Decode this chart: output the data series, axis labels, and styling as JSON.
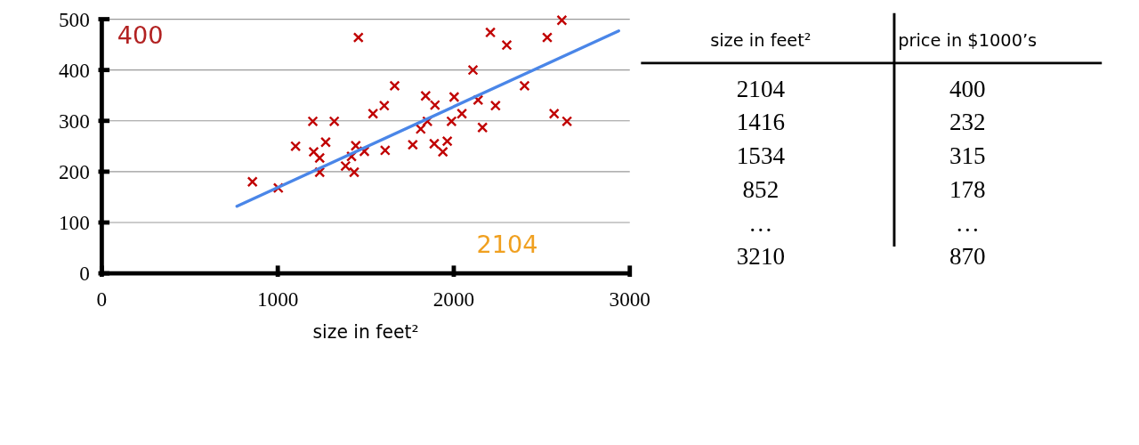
{
  "chart_data": [
    {
      "type": "scatter",
      "xlabel": "size in feet²",
      "xlim": [
        0,
        3000
      ],
      "xticks": [
        0,
        1000,
        2000,
        3000
      ],
      "ylim": [
        0,
        500
      ],
      "yticks": [
        0,
        100,
        200,
        300,
        400,
        500
      ],
      "grid": "y",
      "series": [
        {
          "type": "scatter",
          "marker": "cross",
          "color": "#c00000",
          "x": [
            856,
            1003,
            1101,
            1199,
            1204,
            1238,
            1238,
            1272,
            1321,
            1385,
            1419,
            1434,
            1443,
            1492,
            1458,
            2208,
            2301,
            2531,
            2614,
            2109,
            1664,
            2402,
            1840,
            2002,
            1893,
            2138,
            2237,
            1541,
            1605,
            2046,
            1987,
            1850,
            1812,
            2163,
            2570,
            2643,
            1767,
            1610,
            1889,
            1963,
            1938
          ],
          "values": [
            180,
            168,
            250,
            299,
            239,
            227,
            199,
            258,
            299,
            211,
            230,
            199,
            251,
            240,
            464,
            474,
            449,
            464,
            498,
            400,
            369,
            369,
            349,
            347,
            331,
            341,
            330,
            314,
            330,
            314,
            299,
            299,
            284,
            287,
            314,
            299,
            253,
            242,
            255,
            260,
            239
          ]
        },
        {
          "type": "line",
          "color": "#4a86e8",
          "x": [
            768,
            2937
          ],
          "values": [
            132,
            477
          ]
        }
      ],
      "annotations": [
        "400",
        "2104"
      ]
    },
    {
      "type": "other",
      "annotations": [
        "size in feet²",
        "price in $1000’s",
        "2104",
        "400",
        "1416",
        "232",
        "1534",
        "315",
        "852",
        "178",
        "…",
        "…",
        "3210",
        "870"
      ]
    }
  ]
}
